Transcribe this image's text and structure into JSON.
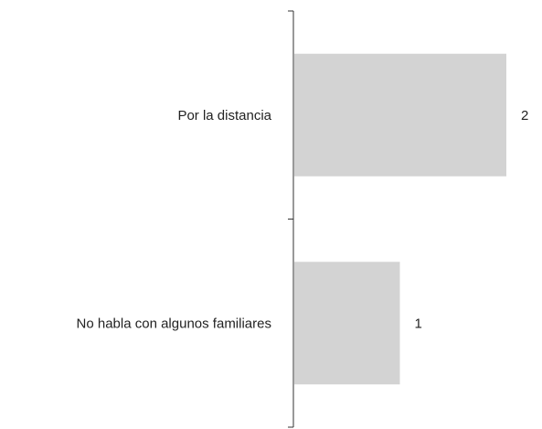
{
  "chart_data": {
    "type": "bar",
    "orientation": "horizontal",
    "title": "",
    "xlabel": "",
    "ylabel": "",
    "categories": [
      "Por la distancia",
      "No habla con algunos familiares"
    ],
    "values": [
      2,
      1
    ],
    "data_labels": [
      "2",
      "1"
    ],
    "xlim": [
      0,
      2
    ],
    "grid": false,
    "legend": "none",
    "colors": {
      "bar": "#d3d3d3",
      "axis": "#333333",
      "text": "#222222"
    }
  }
}
